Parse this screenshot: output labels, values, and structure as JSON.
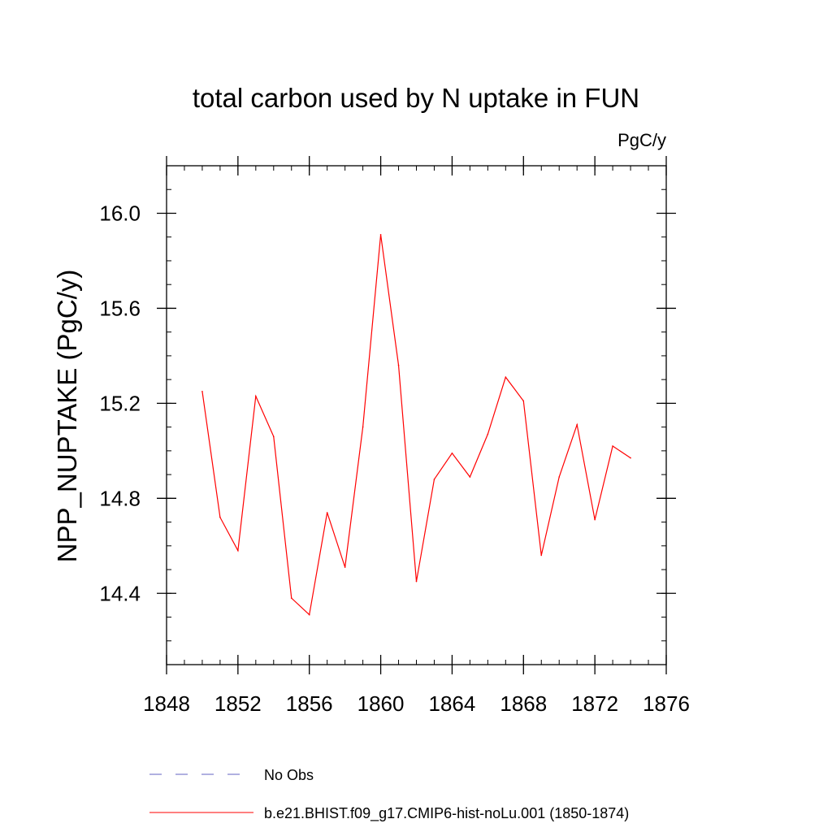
{
  "chart_data": {
    "type": "line",
    "title": "total carbon used by N uptake in FUN",
    "units_label": "PgC/y",
    "ylabel": "NPP_NUPTAKE  (PgC/y)",
    "xlabel": "",
    "xlim": [
      1848,
      1876
    ],
    "ylim": [
      14.1,
      16.2
    ],
    "x_ticks": [
      1848,
      1852,
      1856,
      1860,
      1864,
      1868,
      1872,
      1876
    ],
    "x_tick_labels": [
      "1848",
      "1852",
      "1856",
      "1860",
      "1864",
      "1868",
      "1872",
      "1876"
    ],
    "y_ticks": [
      14.4,
      14.8,
      15.2,
      15.6,
      16.0
    ],
    "y_tick_labels": [
      "14.4",
      "14.8",
      "15.2",
      "15.6",
      "16.0"
    ],
    "x_minor_step": 1,
    "y_minor_step": 0.1,
    "grid": false,
    "legend_position": "bottom",
    "series": [
      {
        "name": "b.e21.BHIST.f09_g17.CMIP6-hist-noLu.001 (1850-1874)",
        "color": "#ff0000",
        "style": "solid",
        "x": [
          1850,
          1851,
          1852,
          1853,
          1854,
          1855,
          1856,
          1857,
          1858,
          1859,
          1860,
          1861,
          1862,
          1863,
          1864,
          1865,
          1866,
          1867,
          1868,
          1869,
          1870,
          1871,
          1872,
          1873,
          1874
        ],
        "y": [
          15.25,
          14.72,
          14.58,
          15.23,
          15.06,
          14.38,
          14.31,
          14.74,
          14.51,
          15.1,
          15.91,
          15.36,
          14.45,
          14.88,
          14.99,
          14.89,
          15.07,
          15.31,
          15.21,
          14.56,
          14.89,
          15.11,
          14.71,
          15.02,
          14.97
        ]
      }
    ],
    "legend": [
      {
        "label": "No Obs",
        "color": "#6060c0",
        "style": "dashed"
      },
      {
        "label": "b.e21.BHIST.f09_g17.CMIP6-hist-noLu.001 (1850-1874)",
        "color": "#ff0000",
        "style": "solid"
      }
    ]
  }
}
